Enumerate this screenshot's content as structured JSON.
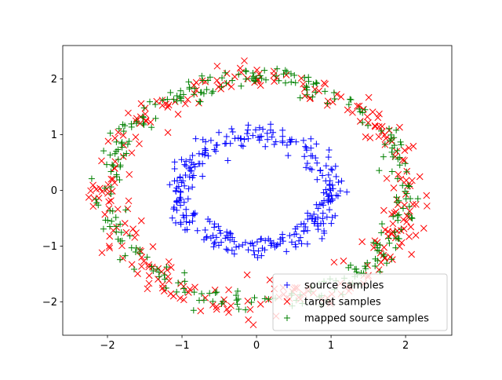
{
  "chart_data": {
    "type": "scatter",
    "title": "",
    "xlabel": "",
    "ylabel": "",
    "xlim": [
      -2.6,
      2.62
    ],
    "ylim": [
      -2.6,
      2.6
    ],
    "xticks": [
      -2,
      -1,
      0,
      1,
      2
    ],
    "yticks": [
      -2,
      -1,
      0,
      1,
      2
    ],
    "xtick_labels": [
      "−2",
      "−1",
      "0",
      "1",
      "2"
    ],
    "ytick_labels": [
      "−2",
      "−1",
      "0",
      "1",
      "2"
    ],
    "grid": false,
    "legend_position": "lower-right",
    "series": [
      {
        "name": "source samples",
        "marker": "+",
        "color": "#0000ff",
        "shape": "ring",
        "center": [
          0,
          0
        ],
        "radius": 1.0,
        "noise": 0.1,
        "count": 300
      },
      {
        "name": "target samples",
        "marker": "x",
        "color": "#ff0000",
        "shape": "ring",
        "center": [
          0,
          0
        ],
        "radius": 2.0,
        "noise": 0.15,
        "count": 300
      },
      {
        "name": "mapped source samples",
        "marker": "+",
        "color": "#008000",
        "shape": "ring",
        "center": [
          0,
          0
        ],
        "radius": 2.0,
        "noise": 0.1,
        "count": 300
      }
    ]
  }
}
